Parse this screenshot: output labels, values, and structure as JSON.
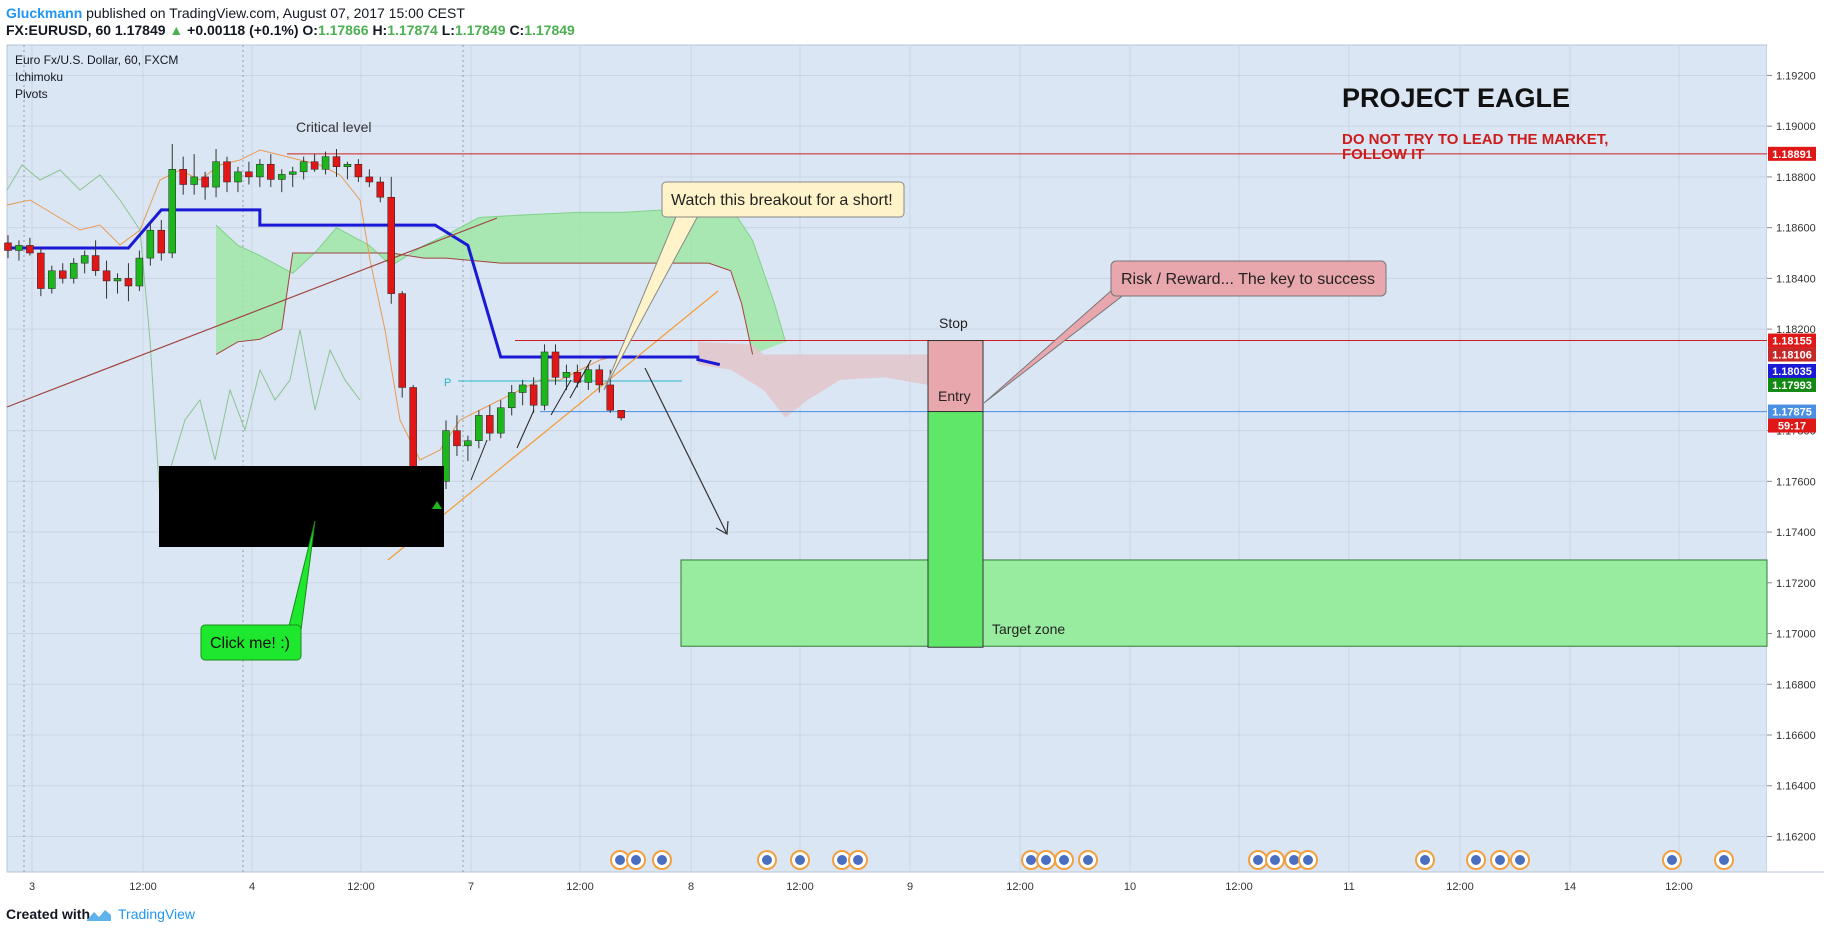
{
  "header": {
    "author": "Gluckmann",
    "published": "published on TradingView.com, August 07, 2017 15:00 CEST",
    "symbol": "FX:EURUSD, 60",
    "last": "1.17849",
    "change": "+0.00118 (+0.1%)",
    "o_label": "O:",
    "o_value": "1.17866",
    "h_label": "H:",
    "h_value": "1.17874",
    "l_label": "L:",
    "l_value": "1.17849",
    "c_label": "C:",
    "c_value": "1.17849"
  },
  "legend": {
    "title": "Euro Fx/U.S. Dollar, 60, FXCM",
    "ind1": "Ichimoku",
    "ind2": "Pivots"
  },
  "annotations": {
    "project_title": "PROJECT EAGLE",
    "motto_line1": "DO NOT TRY TO LEAD THE MARKET,",
    "motto_line2": "FOLLOW IT",
    "critical": "Critical level",
    "breakout": "Watch this breakout for a short!",
    "risk_reward": "Risk / Reward... The key to success",
    "stop": "Stop",
    "entry": "Entry",
    "target": "Target zone",
    "click_me": "Click me! :)",
    "pivot_p": "P"
  },
  "footer": {
    "created": "Created with",
    "tv": "TradingView"
  },
  "colors": {
    "plot_bg": "#dbe6f4",
    "bull": "#1db61d",
    "bear": "#e01717",
    "kijun": "#1a1ad6",
    "cloud_bull": "#9fe5a6",
    "cloud_bear": "#e3c6c9",
    "red_line": "#cc2020",
    "blue_line": "#4a90e2",
    "trend_orange": "#f59b30"
  },
  "chart_data": {
    "type": "candlestick",
    "symbol": "EURUSD",
    "timeframe": "60",
    "ylim": [
      1.1606,
      1.1932
    ],
    "y_ticks": [
      "1.19200",
      "1.19000",
      "1.18800",
      "1.18600",
      "1.18400",
      "1.18200",
      "1.17800",
      "1.17600",
      "1.17400",
      "1.17200",
      "1.17000",
      "1.16800",
      "1.16600",
      "1.16400",
      "1.16200"
    ],
    "x_ticks": [
      "3",
      "12:00",
      "4",
      "12:00",
      "7",
      "12:00",
      "8",
      "12:00",
      "9",
      "12:00",
      "10",
      "12:00",
      "11",
      "12:00",
      "14",
      "12:00"
    ],
    "price_labels": [
      {
        "value": 1.18891,
        "text": "1.18891",
        "color": "#e01717"
      },
      {
        "value": 1.18155,
        "text": "1.18155",
        "color": "#e01717"
      },
      {
        "value": 1.18106,
        "text": "1.18106",
        "color": "#c62828"
      },
      {
        "value": 1.18035,
        "text": "1.18035",
        "color": "#1a1ad6"
      },
      {
        "value": 1.17993,
        "text": "1.17993",
        "color": "#138a13"
      },
      {
        "value": 1.17875,
        "text": "1.17875",
        "color": "#4a90e2"
      },
      {
        "value": 1.17849,
        "text": "59:17",
        "color": "#e01717"
      }
    ],
    "levels": {
      "critical": 1.18891,
      "stop": 1.18155,
      "entry": 1.17875,
      "target_high": 1.1729,
      "target_low": 1.1695
    },
    "candles": [
      [
        1.1854,
        1.1857,
        1.1848,
        1.1851
      ],
      [
        1.1851,
        1.1855,
        1.1847,
        1.1853
      ],
      [
        1.1853,
        1.1856,
        1.1849,
        1.185
      ],
      [
        1.185,
        1.1852,
        1.1833,
        1.1836
      ],
      [
        1.1836,
        1.1845,
        1.1834,
        1.1843
      ],
      [
        1.1843,
        1.1846,
        1.1838,
        1.184
      ],
      [
        1.184,
        1.1848,
        1.1838,
        1.1846
      ],
      [
        1.1846,
        1.1851,
        1.1842,
        1.1849
      ],
      [
        1.1849,
        1.1855,
        1.1841,
        1.1843
      ],
      [
        1.1843,
        1.1847,
        1.1832,
        1.1839
      ],
      [
        1.1839,
        1.1842,
        1.1834,
        1.184
      ],
      [
        1.184,
        1.1846,
        1.1831,
        1.1837
      ],
      [
        1.1837,
        1.1851,
        1.1835,
        1.1848
      ],
      [
        1.1848,
        1.1862,
        1.1845,
        1.1859
      ],
      [
        1.1859,
        1.1863,
        1.1847,
        1.185
      ],
      [
        1.185,
        1.1893,
        1.1848,
        1.1883
      ],
      [
        1.1883,
        1.1888,
        1.1873,
        1.1877
      ],
      [
        1.1877,
        1.1889,
        1.1873,
        1.188
      ],
      [
        1.188,
        1.1882,
        1.1871,
        1.1876
      ],
      [
        1.1876,
        1.1891,
        1.1872,
        1.1886
      ],
      [
        1.1886,
        1.1888,
        1.1874,
        1.1878
      ],
      [
        1.1878,
        1.1884,
        1.1874,
        1.1882
      ],
      [
        1.1882,
        1.1886,
        1.1877,
        1.188
      ],
      [
        1.188,
        1.1887,
        1.1876,
        1.1885
      ],
      [
        1.1885,
        1.1889,
        1.1876,
        1.1879
      ],
      [
        1.1879,
        1.1883,
        1.1874,
        1.1881
      ],
      [
        1.1881,
        1.1884,
        1.1876,
        1.1882
      ],
      [
        1.1882,
        1.1888,
        1.1879,
        1.1886
      ],
      [
        1.1886,
        1.1889,
        1.1882,
        1.1883
      ],
      [
        1.1883,
        1.189,
        1.1881,
        1.1888
      ],
      [
        1.1888,
        1.1891,
        1.188,
        1.1884
      ],
      [
        1.1884,
        1.1886,
        1.1879,
        1.1885
      ],
      [
        1.1885,
        1.1887,
        1.1878,
        1.188
      ],
      [
        1.188,
        1.1883,
        1.1876,
        1.1878
      ],
      [
        1.1878,
        1.188,
        1.187,
        1.1872
      ],
      [
        1.1872,
        1.188,
        1.183,
        1.1834
      ],
      [
        1.1834,
        1.1835,
        1.1793,
        1.1797
      ],
      [
        1.1797,
        1.1798,
        1.175,
        1.1752
      ],
      [
        1.1752,
        1.1758,
        1.1748,
        1.175
      ],
      [
        1.175,
        1.1762,
        1.1749,
        1.176
      ],
      [
        1.176,
        1.1784,
        1.1757,
        1.178
      ],
      [
        1.178,
        1.1786,
        1.177,
        1.1774
      ],
      [
        1.1774,
        1.1778,
        1.1768,
        1.1776
      ],
      [
        1.1776,
        1.1788,
        1.1773,
        1.1786
      ],
      [
        1.1786,
        1.179,
        1.1776,
        1.1779
      ],
      [
        1.1779,
        1.1792,
        1.1777,
        1.1789
      ],
      [
        1.1789,
        1.1798,
        1.1786,
        1.1795
      ],
      [
        1.1795,
        1.18,
        1.179,
        1.1798
      ],
      [
        1.1798,
        1.1801,
        1.1787,
        1.179
      ],
      [
        1.179,
        1.1814,
        1.1788,
        1.1811
      ],
      [
        1.1811,
        1.1814,
        1.1798,
        1.1801
      ],
      [
        1.1801,
        1.1806,
        1.1796,
        1.1803
      ],
      [
        1.1803,
        1.1806,
        1.1797,
        1.1799
      ],
      [
        1.1799,
        1.1806,
        1.1796,
        1.1804
      ],
      [
        1.1804,
        1.1806,
        1.1795,
        1.1798
      ],
      [
        1.1798,
        1.1804,
        1.1787,
        1.1788
      ],
      [
        1.1788,
        1.1788,
        1.1784,
        1.1785
      ]
    ],
    "kijun": [
      [
        0,
        1.1852
      ],
      [
        11,
        1.1852
      ],
      [
        14,
        1.1867
      ],
      [
        23,
        1.1867
      ],
      [
        23,
        1.1861
      ],
      [
        39,
        1.1861
      ],
      [
        42,
        1.1853
      ],
      [
        45,
        1.1809
      ],
      [
        63,
        1.1809
      ],
      [
        63,
        1.1808
      ],
      [
        65,
        1.1806
      ]
    ],
    "cloud_edges": {
      "span_a": [
        [
          19,
          1.1861
        ],
        [
          21,
          1.1853
        ],
        [
          23,
          1.1849
        ],
        [
          26,
          1.1842
        ],
        [
          28,
          1.185
        ],
        [
          30,
          1.186
        ],
        [
          33,
          1.1853
        ],
        [
          35,
          1.1845
        ],
        [
          38,
          1.1853
        ],
        [
          40,
          1.1857
        ],
        [
          43,
          1.1864
        ],
        [
          47,
          1.1865
        ],
        [
          52,
          1.1866
        ],
        [
          56,
          1.1866
        ],
        [
          60,
          1.1867
        ],
        [
          63,
          1.187
        ],
        [
          66,
          1.1868
        ],
        [
          68,
          1.1855
        ],
        [
          70,
          1.183
        ],
        [
          71,
          1.1815
        ]
      ],
      "span_b": [
        [
          19,
          1.181
        ],
        [
          21,
          1.1815
        ],
        [
          23,
          1.1816
        ],
        [
          25,
          1.182
        ],
        [
          26,
          1.185
        ],
        [
          35,
          1.185
        ],
        [
          38,
          1.1848
        ],
        [
          40,
          1.1848
        ],
        [
          45,
          1.1846
        ],
        [
          50,
          1.1846
        ],
        [
          56,
          1.1846
        ],
        [
          62,
          1.1846
        ],
        [
          64,
          1.1846
        ],
        [
          66,
          1.1843
        ],
        [
          67,
          1.183
        ],
        [
          68,
          1.181
        ]
      ]
    }
  }
}
